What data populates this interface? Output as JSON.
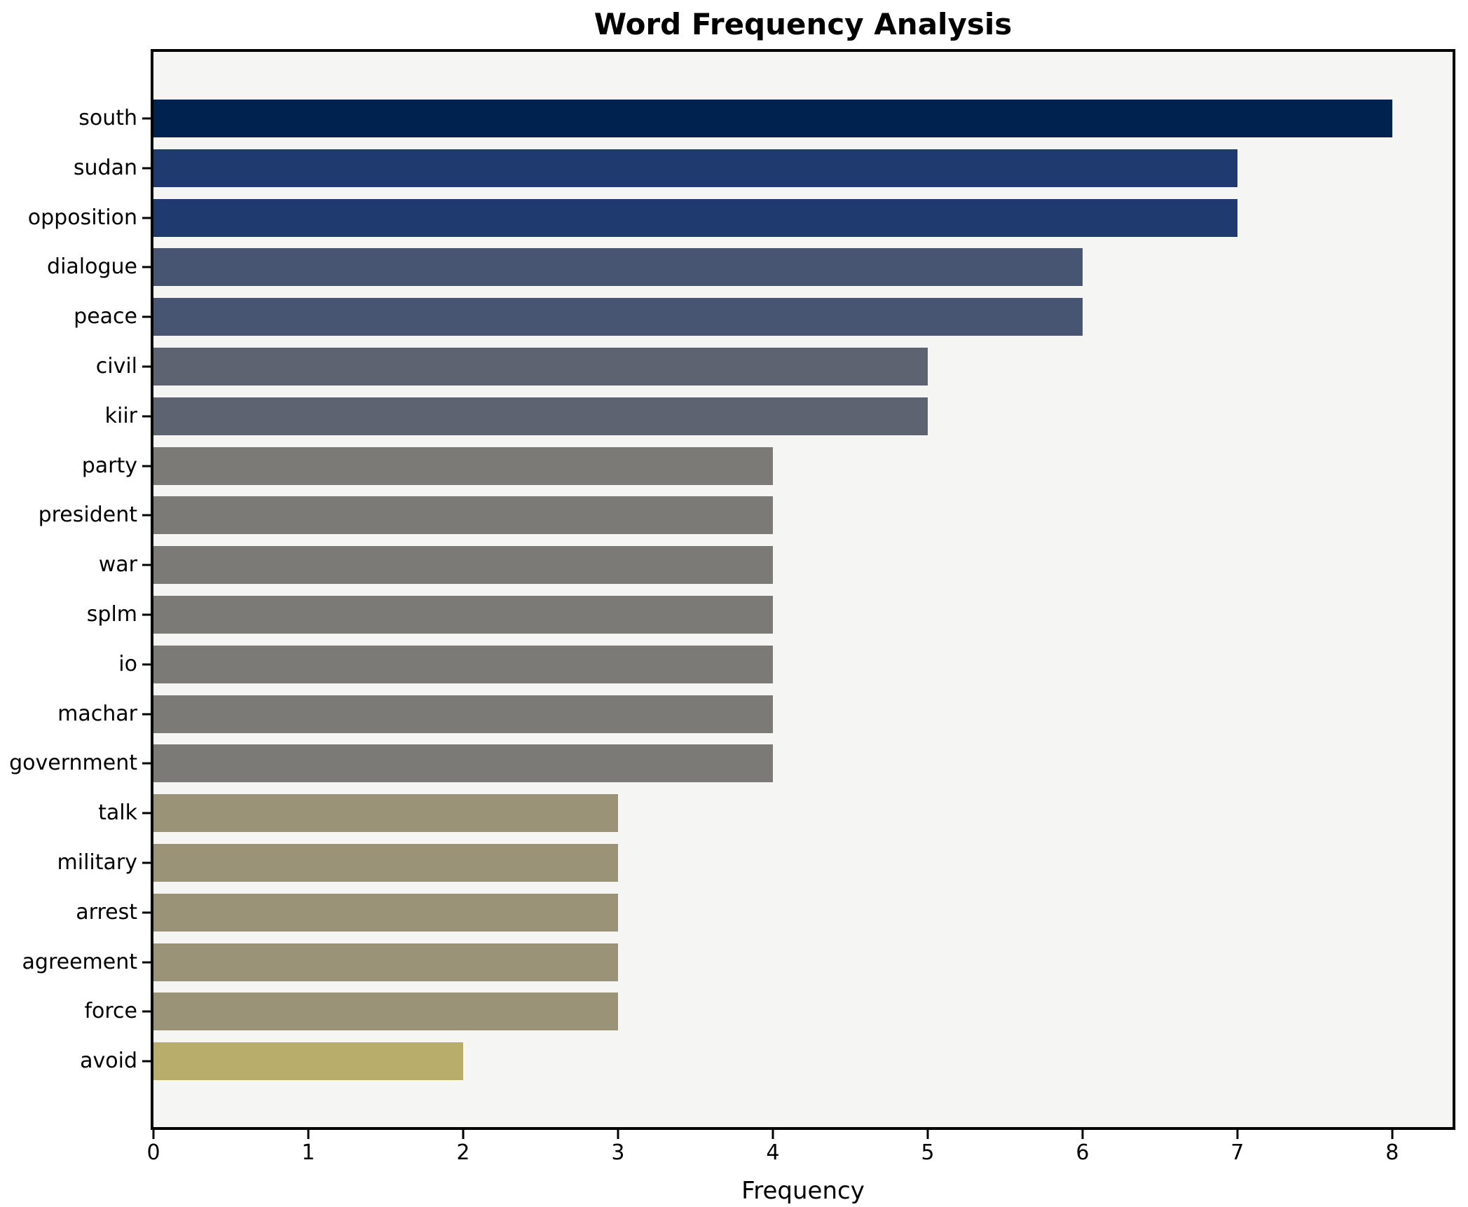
{
  "chart_data": {
    "type": "bar",
    "orientation": "horizontal",
    "title": "Word Frequency Analysis",
    "xlabel": "Frequency",
    "ylabel": "",
    "xlim": [
      0,
      8.39
    ],
    "x_ticks": [
      0,
      1,
      2,
      3,
      4,
      5,
      6,
      7,
      8
    ],
    "grid": false,
    "legend": null,
    "categories": [
      "south",
      "sudan",
      "opposition",
      "dialogue",
      "peace",
      "civil",
      "kiir",
      "party",
      "president",
      "war",
      "splm",
      "io",
      "machar",
      "government",
      "talk",
      "military",
      "arrest",
      "agreement",
      "force",
      "avoid"
    ],
    "values": [
      8,
      7,
      7,
      6,
      6,
      5,
      5,
      4,
      4,
      4,
      4,
      4,
      4,
      4,
      3,
      3,
      3,
      3,
      3,
      2
    ],
    "bar_colors": [
      "#00224e",
      "#1e3a6e",
      "#1e3a6e",
      "#475472",
      "#475472",
      "#5d6370",
      "#5d6370",
      "#7b7a76",
      "#7b7a76",
      "#7b7a76",
      "#7b7a76",
      "#7b7a76",
      "#7b7a76",
      "#7b7a76",
      "#9a9377",
      "#9a9377",
      "#9a9377",
      "#9a9377",
      "#9a9377",
      "#b9ad6c"
    ],
    "colors": {
      "figure_background": "#ffffff",
      "axes_background": "#f5f5f3",
      "spine": "#000000",
      "text": "#000000"
    }
  }
}
